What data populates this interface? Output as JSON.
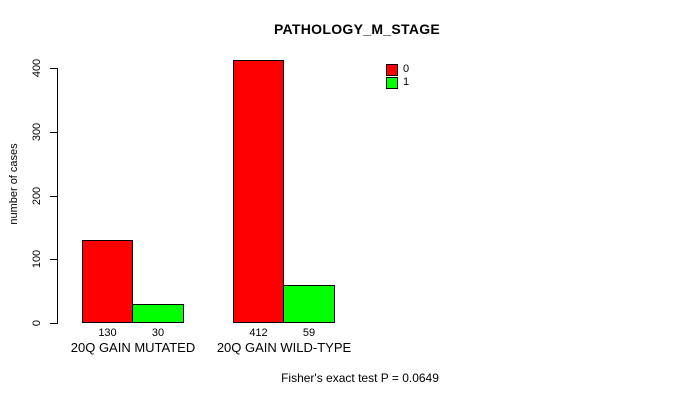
{
  "chart_data": {
    "type": "bar",
    "title": "PATHOLOGY_M_STAGE",
    "ylabel": "number of cases",
    "xlabel": "",
    "ylim": [
      0,
      400
    ],
    "yticks": [
      0,
      100,
      200,
      300,
      400
    ],
    "grid": false,
    "background": "#ffffff",
    "axis_color": "#000000",
    "legend": {
      "position": "top-right-inside",
      "entries": [
        {
          "label": "0",
          "color": "#ff0000"
        },
        {
          "label": "1",
          "color": "#00ff00"
        }
      ]
    },
    "categories": [
      "20Q GAIN MUTATED",
      "20Q GAIN WILD-TYPE"
    ],
    "series": [
      {
        "name": "0",
        "color": "#ff0000",
        "values": [
          130,
          412
        ]
      },
      {
        "name": "1",
        "color": "#00ff00",
        "values": [
          30,
          59
        ]
      }
    ],
    "bar_value_labels_shown": true,
    "annotation": "Fisher's exact test P = 0.0649"
  }
}
